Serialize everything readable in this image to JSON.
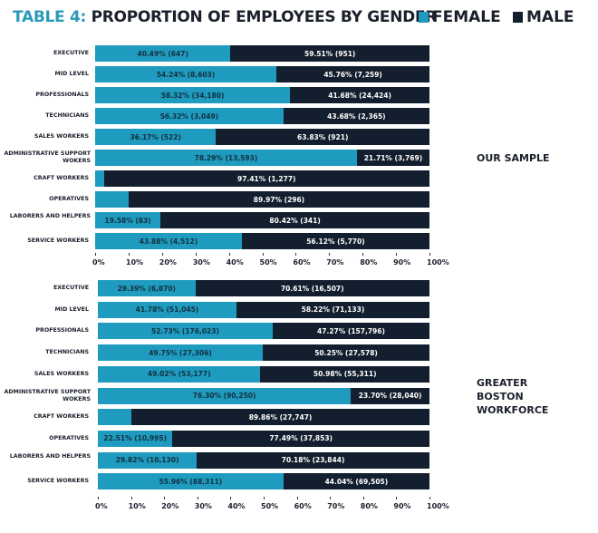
{
  "header": {
    "title_prefix": "TABLE 4:",
    "title": "PROPORTION OF EMPLOYEES BY GENDER"
  },
  "legend": [
    {
      "label": "FEMALE",
      "color": "#1f9bc0"
    },
    {
      "label": "MALE",
      "color": "#131f2e"
    }
  ],
  "chart_data": [
    {
      "type": "bar",
      "orientation": "horizontal",
      "stacked": true,
      "title": "OUR SAMPLE",
      "categories": [
        "EXECUTIVE",
        "MID LEVEL",
        "PROFESSIONALS",
        "TECHNICIANS",
        "SALES WORKERS",
        "ADMINISTRATIVE SUPPORT WOKERS",
        "CRAFT WORKERS",
        "OPERATIVES",
        "LABORERS AND HELPERS",
        "SERVICE WORKERS"
      ],
      "series": [
        {
          "name": "FEMALE",
          "values": [
            40.49,
            54.24,
            58.32,
            56.32,
            36.17,
            78.29,
            2.59,
            10.03,
            19.58,
            43.88
          ],
          "labels": [
            "40.49% (647)",
            "54.24% (8,603)",
            "58.32% (34,180)",
            "56.32% (3,049)",
            "36.17% (522)",
            "78.29% (13,593)",
            "",
            "",
            "19.58% (83)",
            "43.88% (4,512)"
          ]
        },
        {
          "name": "MALE",
          "values": [
            59.51,
            45.76,
            41.68,
            43.68,
            63.83,
            21.71,
            97.41,
            89.97,
            80.42,
            56.12
          ],
          "labels": [
            "59.51% (951)",
            "45.76% (7,259)",
            "41.68% (24,424)",
            "43.68% (2,365)",
            "63.83% (921)",
            "21.71% (3,769)",
            "97.41% (1,277)",
            "89.97% (296)",
            "80.42% (341)",
            "56.12% (5,770)"
          ]
        }
      ],
      "xlim": [
        0,
        100
      ],
      "xticks": [
        "0%",
        "10%",
        "20%",
        "30%",
        "40%",
        "50%",
        "60%",
        "70%",
        "80%",
        "90%",
        "100%"
      ]
    },
    {
      "type": "bar",
      "orientation": "horizontal",
      "stacked": true,
      "title": "GREATER BOSTON WORKFORCE",
      "categories": [
        "EXECUTIVE",
        "MID LEVEL",
        "PROFESSIONALS",
        "TECHNICIANS",
        "SALES WORKERS",
        "ADMINISTRATIVE SUPPORT WOKERS",
        "CRAFT WORKERS",
        "OPERATIVES",
        "LABORERS AND HELPERS",
        "SERVICE WORKERS"
      ],
      "series": [
        {
          "name": "FEMALE",
          "values": [
            29.39,
            41.78,
            52.73,
            49.75,
            49.02,
            76.3,
            10.14,
            22.51,
            29.82,
            55.96
          ],
          "labels": [
            "29.39% (6,870)",
            "41.78% (51,045)",
            "52.73% (176,023)",
            "49.75% (27,306)",
            "49.02% (53,177)",
            "76.30% (90,250)",
            "",
            "22.51% (10,995)",
            "29.82% (10,130)",
            "55.96% (88,311)"
          ]
        },
        {
          "name": "MALE",
          "values": [
            70.61,
            58.22,
            47.27,
            50.25,
            50.98,
            23.7,
            89.86,
            77.49,
            70.18,
            44.04
          ],
          "labels": [
            "70.61% (16,507)",
            "58.22% (71,133)",
            "47.27% (157,796)",
            "50.25% (27,578)",
            "50.98% (55,311)",
            "23.70% (28,040)",
            "89.86% (27,747)",
            "77.49% (37,853)",
            "70.18% (23,844)",
            "44.04% (69,505)"
          ]
        }
      ],
      "xlim": [
        0,
        100
      ],
      "xticks": [
        "0%",
        "10%",
        "20%",
        "30%",
        "40%",
        "50%",
        "60%",
        "70%",
        "80%",
        "90%",
        "100%"
      ]
    }
  ],
  "side_labels": [
    "OUR SAMPLE",
    "GREATER BOSTON WORKFORCE"
  ]
}
